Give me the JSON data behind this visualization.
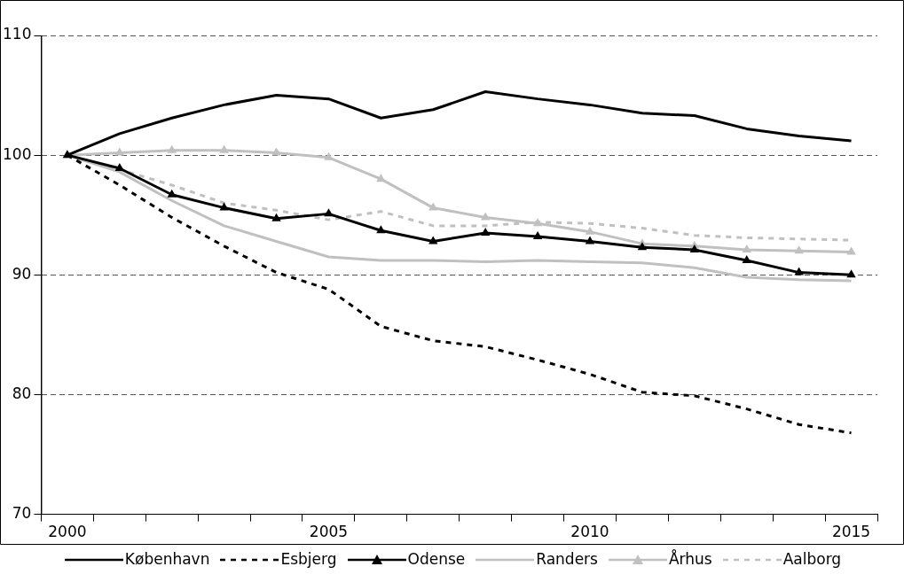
{
  "chart_data": {
    "type": "line",
    "categories": [
      "2000",
      null,
      null,
      null,
      null,
      "2005",
      null,
      null,
      null,
      null,
      "2010",
      null,
      null,
      null,
      null,
      "2015"
    ],
    "ylim": [
      70,
      110
    ],
    "yticks": [
      70,
      80,
      90,
      100,
      110
    ],
    "grid": "y",
    "legend": "bottom",
    "series": [
      {
        "name": "København",
        "color": "#000000",
        "line_style": "solid",
        "marker": "none",
        "values": [
          100,
          101.8,
          103.1,
          104.2,
          105.0,
          104.7,
          103.1,
          103.8,
          105.3,
          104.7,
          104.2,
          103.5,
          103.3,
          102.2,
          101.6,
          101.2
        ]
      },
      {
        "name": "Esbjerg",
        "color": "#000000",
        "line_style": "dashed",
        "marker": "none",
        "values": [
          100,
          97.5,
          94.8,
          92.4,
          90.2,
          88.8,
          85.7,
          84.5,
          84.0,
          82.9,
          81.7,
          80.2,
          79.9,
          78.8,
          77.5,
          76.8
        ]
      },
      {
        "name": "Odense",
        "color": "#000000",
        "line_style": "solid",
        "marker": "triangle",
        "values": [
          100,
          98.9,
          96.7,
          95.6,
          94.7,
          95.1,
          93.7,
          92.8,
          93.5,
          93.2,
          92.8,
          92.3,
          92.1,
          91.2,
          90.2,
          90.0
        ]
      },
      {
        "name": "Randers",
        "color": "#c0c0c0",
        "line_style": "solid",
        "marker": "none",
        "values": [
          100,
          98.6,
          96.2,
          94.1,
          92.8,
          91.5,
          91.2,
          91.2,
          91.1,
          91.2,
          91.1,
          91.0,
          90.6,
          89.8,
          89.6,
          89.5
        ]
      },
      {
        "name": "Århus",
        "color": "#c0c0c0",
        "line_style": "solid",
        "marker": "triangle",
        "values": [
          100,
          100.2,
          100.4,
          100.4,
          100.2,
          99.8,
          98.0,
          95.6,
          94.8,
          94.3,
          93.6,
          92.6,
          92.4,
          92.1,
          92.0,
          91.9
        ]
      },
      {
        "name": "Aalborg",
        "color": "#c0c0c0",
        "line_style": "dashed",
        "marker": "none",
        "values": [
          100,
          98.8,
          97.5,
          96.0,
          95.4,
          94.6,
          95.3,
          94.1,
          94.1,
          94.4,
          94.3,
          93.9,
          93.3,
          93.1,
          93.0,
          92.9
        ]
      }
    ]
  }
}
